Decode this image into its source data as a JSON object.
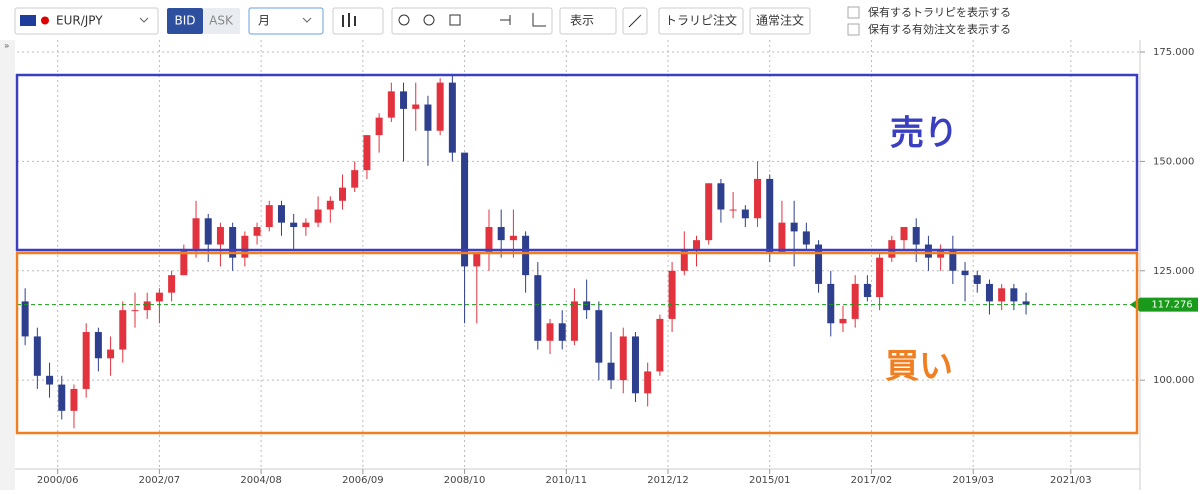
{
  "toolbar": {
    "symbol": "EUR/JPY",
    "bid": "BID",
    "ask": "ASK",
    "period": "月",
    "display": "表示",
    "trap_order": "トラリピ注文",
    "normal_order": "通常注文",
    "show_trap": "保有するトラリピを表示する",
    "show_orders": "保有する有効注文を表示する"
  },
  "chart_data": {
    "type": "candlestick",
    "annotations": [
      "売り",
      "買い"
    ],
    "x": [
      "1999/10",
      "2000/01",
      "2000/04",
      "2000/07",
      "2000/10",
      "2001/01",
      "2001/04",
      "2001/07",
      "2001/10",
      "2002/01",
      "2002/04",
      "2002/07",
      "2002/10",
      "2003/01",
      "2003/04",
      "2003/07",
      "2003/10",
      "2004/01",
      "2004/04",
      "2004/07",
      "2004/10",
      "2005/01",
      "2005/04",
      "2005/07",
      "2005/10",
      "2006/01",
      "2006/04",
      "2006/07",
      "2006/10",
      "2007/01",
      "2007/04",
      "2007/07",
      "2007/10",
      "2008/01",
      "2008/04",
      "2008/07",
      "2008/10",
      "2009/01",
      "2009/04",
      "2009/07",
      "2009/10",
      "2010/01",
      "2010/04",
      "2010/07",
      "2010/10",
      "2011/01",
      "2011/04",
      "2011/07",
      "2011/10",
      "2012/01",
      "2012/04",
      "2012/07",
      "2012/10",
      "2013/01",
      "2013/04",
      "2013/07",
      "2013/10",
      "2014/01",
      "2014/04",
      "2014/07",
      "2014/10",
      "2015/01",
      "2015/04",
      "2015/07",
      "2015/10",
      "2016/01",
      "2016/04",
      "2016/07",
      "2016/10",
      "2017/01",
      "2017/04",
      "2017/07",
      "2017/10",
      "2018/01",
      "2018/04",
      "2018/07",
      "2018/10",
      "2019/01",
      "2019/04",
      "2019/07",
      "2019/10",
      "2020/01",
      "2020/04"
    ],
    "open": [
      118,
      110,
      101,
      99,
      93,
      98,
      111,
      105,
      107,
      116,
      116,
      118,
      120,
      124,
      130,
      137,
      131,
      135,
      128,
      133,
      135,
      140,
      136,
      135,
      136,
      139,
      141,
      144,
      148,
      156,
      160,
      166,
      162,
      163,
      157,
      168,
      152,
      126,
      129,
      135,
      132,
      133,
      124,
      109,
      113,
      109,
      118,
      116,
      104,
      100,
      110,
      97,
      102,
      114,
      125,
      130,
      132,
      145,
      139,
      139,
      137,
      146,
      129,
      136,
      134,
      131,
      122,
      113,
      114,
      122,
      119,
      128,
      132,
      135,
      131,
      128,
      130,
      125,
      124,
      122,
      118,
      121,
      118
    ],
    "high": [
      121,
      112,
      104,
      101,
      99,
      113,
      112,
      110,
      118,
      120,
      120,
      121,
      125,
      131,
      141,
      138,
      136,
      136,
      134,
      136,
      141,
      141,
      138,
      137,
      142,
      142,
      147,
      150,
      156,
      161,
      168,
      168,
      168,
      165,
      169,
      170,
      152,
      129,
      139,
      139,
      139,
      134,
      127,
      114,
      116,
      121,
      123,
      118,
      111,
      112,
      111,
      104,
      115,
      127,
      134,
      133,
      145,
      146,
      143,
      140,
      150,
      147,
      141,
      141,
      136,
      132,
      125,
      117,
      124,
      124,
      129,
      133,
      135,
      137,
      133,
      131,
      133,
      127,
      125,
      123,
      122,
      122,
      120
    ],
    "low": [
      108,
      98,
      96,
      91,
      89,
      96,
      102,
      101,
      104,
      112,
      114,
      113,
      118,
      124,
      128,
      127,
      126,
      125,
      126,
      131,
      134,
      133,
      130,
      133,
      135,
      136,
      139,
      143,
      146,
      152,
      159,
      150,
      157,
      149,
      156,
      150,
      113,
      113,
      125,
      128,
      128,
      120,
      107,
      106,
      107,
      108,
      114,
      100,
      98,
      97,
      95,
      94,
      101,
      111,
      124,
      126,
      131,
      136,
      137,
      135,
      135,
      127,
      129,
      126,
      130,
      120,
      110,
      111,
      112,
      118,
      116,
      127,
      130,
      127,
      125,
      125,
      122,
      118,
      120,
      115,
      116,
      116,
      115
    ],
    "close": [
      110,
      101,
      99,
      93,
      98,
      111,
      105,
      107,
      116,
      116,
      118,
      120,
      124,
      130,
      137,
      131,
      135,
      128,
      133,
      135,
      140,
      136,
      135,
      136,
      139,
      141,
      144,
      148,
      156,
      160,
      166,
      162,
      163,
      157,
      168,
      152,
      126,
      129,
      135,
      132,
      133,
      124,
      109,
      113,
      109,
      118,
      116,
      104,
      100,
      110,
      97,
      102,
      114,
      125,
      130,
      132,
      145,
      139,
      139,
      137,
      146,
      129,
      136,
      134,
      131,
      122,
      113,
      114,
      122,
      119,
      128,
      132,
      135,
      131,
      128,
      130,
      125,
      124,
      122,
      118,
      121,
      118,
      117.276
    ],
    "up_color": "#e2323e",
    "down_color": "#2e3f8e",
    "last_price": 117.276,
    "last_price_color": "#1a9a1a",
    "xlim": [
      "1999/08",
      "2022/08"
    ],
    "xticks": [
      "2000/06",
      "2002/07",
      "2004/08",
      "2006/09",
      "2008/10",
      "2010/11",
      "2012/12",
      "2015/01",
      "2017/02",
      "2019/03",
      "2021/03"
    ],
    "ylim": [
      81.3,
      176.6
    ],
    "yticks": [
      {
        "value": 100,
        "label": "100.000"
      },
      {
        "value": 125,
        "label": "125.000"
      },
      {
        "value": 150,
        "label": "150.000"
      },
      {
        "value": 175,
        "label": "175.000"
      }
    ],
    "grid": true
  }
}
